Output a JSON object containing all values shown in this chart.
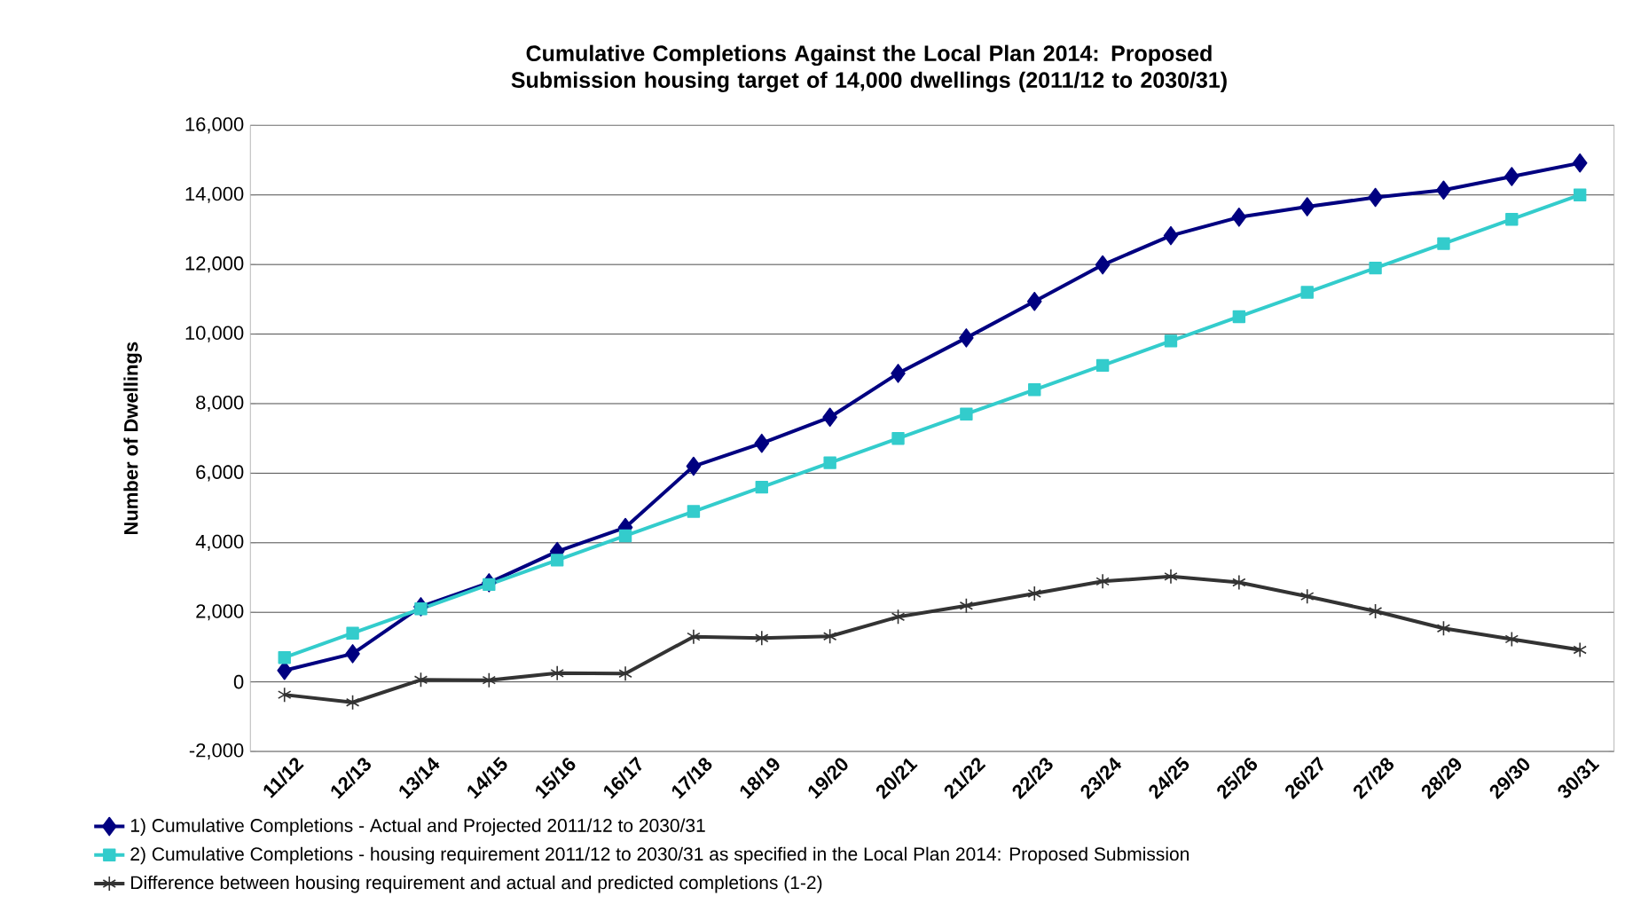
{
  "chart_data": {
    "type": "line",
    "title": "Cumulative Completions Against the Local Plan 2014: Proposed Submission housing target of 14,000 dwellings (2011/12 to 2030/31)",
    "ylabel": "Number of Dwellings",
    "categories": [
      "11/12",
      "12/13",
      "13/14",
      "14/15",
      "15/16",
      "16/17",
      "17/18",
      "18/19",
      "19/20",
      "20/21",
      "21/22",
      "22/23",
      "23/24",
      "24/25",
      "25/26",
      "26/27",
      "27/28",
      "28/29",
      "29/30",
      "30/31"
    ],
    "series": [
      {
        "name": "1) Cumulative Completions  - Actual and Projected 2011/12 to 2030/31",
        "color": "#000080",
        "marker": "diamond",
        "values": [
          330,
          810,
          2160,
          2850,
          3750,
          4440,
          6200,
          6860,
          7610,
          8870,
          9890,
          10940,
          11990,
          12830,
          13360,
          13660,
          13930,
          14140,
          14530,
          14920
        ]
      },
      {
        "name": "2) Cumulative Completions - housing requirement 2011/12 to 2030/31 as specified in the Local Plan 2014: Proposed Submission",
        "color": "#33cccc",
        "marker": "square",
        "values": [
          700,
          1400,
          2100,
          2800,
          3500,
          4200,
          4900,
          5600,
          6300,
          7000,
          7700,
          8400,
          9100,
          9800,
          10500,
          11200,
          11900,
          12600,
          13300,
          14000
        ]
      },
      {
        "name": "Difference between housing requirement and actual and predicted completions (1-2)",
        "color": "#333333",
        "marker": "cross",
        "values": [
          -370,
          -590,
          60,
          50,
          250,
          240,
          1300,
          1260,
          1310,
          1870,
          2190,
          2540,
          2890,
          3030,
          2860,
          2460,
          2030,
          1540,
          1230,
          920
        ]
      }
    ],
    "ylim": [
      -2000,
      16000
    ],
    "yticks": [
      {
        "value": -2000,
        "label": "-2,000"
      },
      0,
      {
        "value": 2000,
        "label": "2,000"
      },
      {
        "value": 4000,
        "label": "4,000"
      },
      {
        "value": 6000,
        "label": "6,000"
      },
      {
        "value": 8000,
        "label": "8,000"
      },
      {
        "value": 10000,
        "label": "10,000"
      },
      {
        "value": 12000,
        "label": "12,000"
      },
      {
        "value": 14000,
        "label": "14,000"
      },
      {
        "value": 16000,
        "label": "16,000"
      }
    ],
    "grid": "y",
    "legend": "bottom",
    "line_style": "solid"
  }
}
